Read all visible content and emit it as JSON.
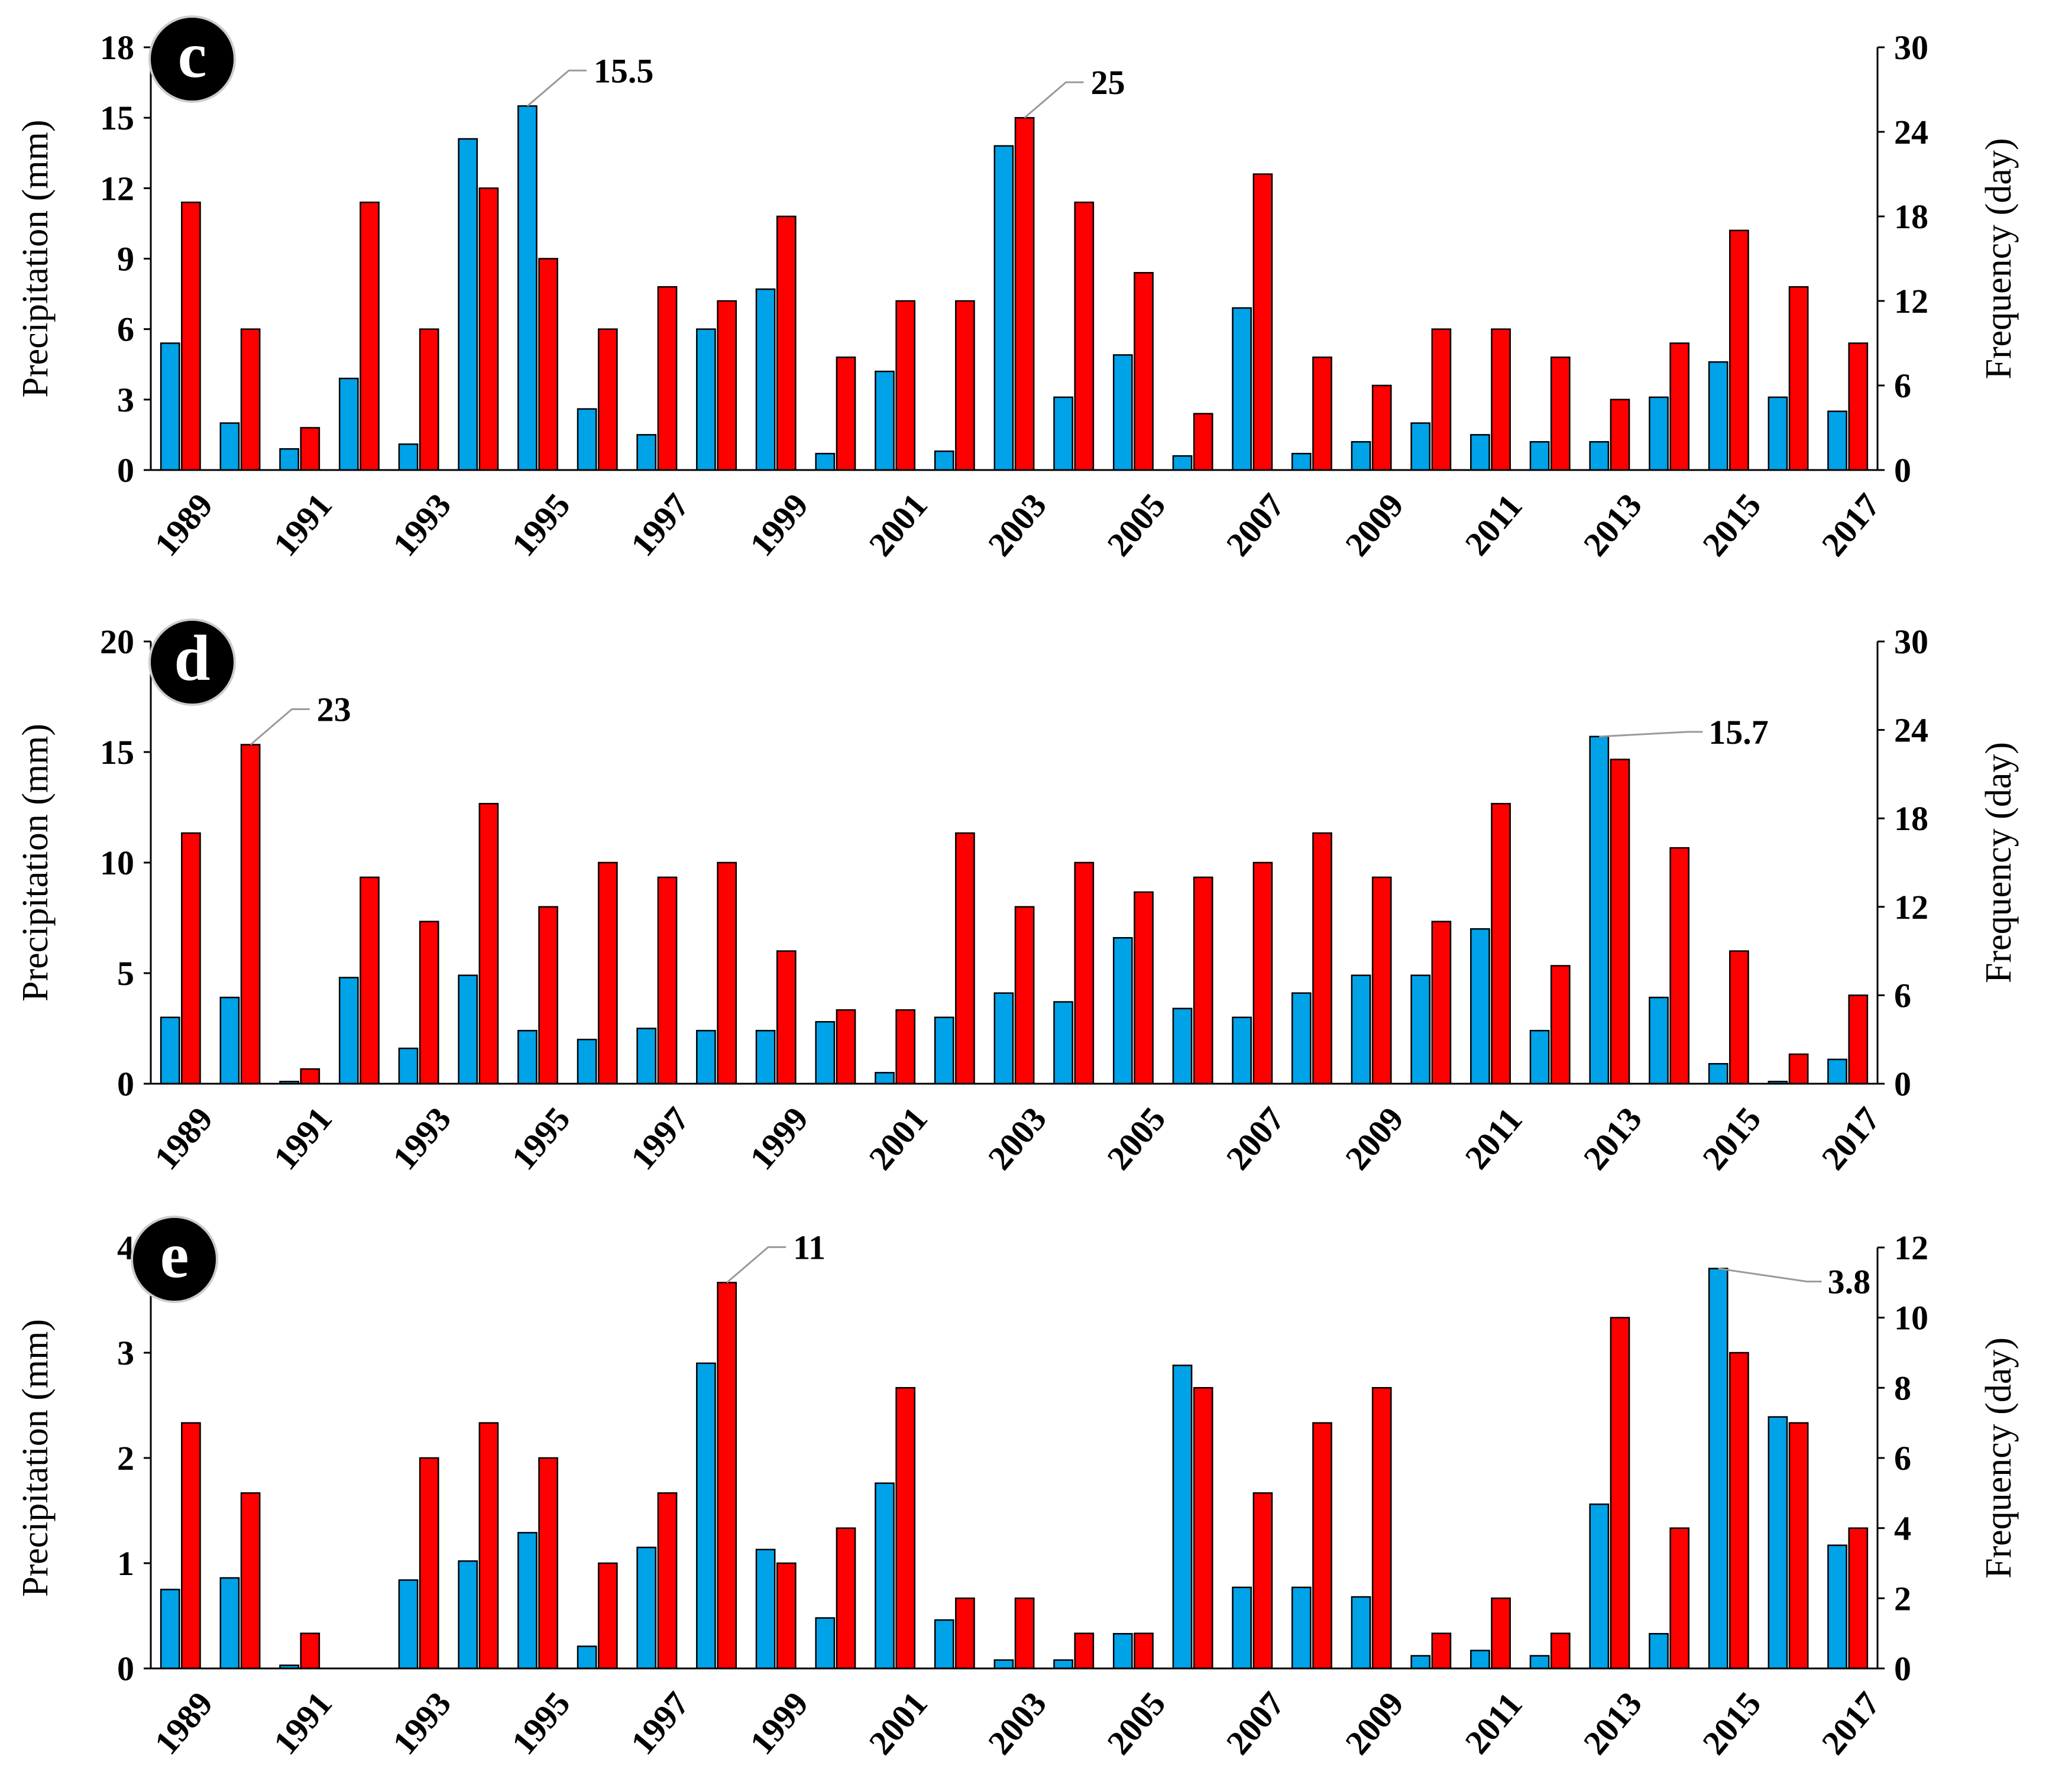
{
  "colors": {
    "precip_bar": "#00a2e8",
    "freq_bar": "#ff0000",
    "bar_outline": "#000000",
    "axis": "#000000",
    "badge": "#000000",
    "badge_text": "#ffffff",
    "leader": "#9a9a9a"
  },
  "chart_data": [
    {
      "panel_label": "c",
      "type": "bar",
      "categories": [
        "1989",
        "1990",
        "1991",
        "1992",
        "1993",
        "1994",
        "1995",
        "1996",
        "1997",
        "1998",
        "1999",
        "2000",
        "2001",
        "2002",
        "2003",
        "2004",
        "2005",
        "2006",
        "2007",
        "2008",
        "2009",
        "2010",
        "2011",
        "2012",
        "2013",
        "2014",
        "2015",
        "2016",
        "2017"
      ],
      "xtick_labels": [
        "1989",
        "1991",
        "1993",
        "1995",
        "1997",
        "1999",
        "2001",
        "2003",
        "2005",
        "2007",
        "2009",
        "2011",
        "2013",
        "2015",
        "2017"
      ],
      "ylabel": "Precipitation (mm)",
      "y2label": "Frequency (day)",
      "ylim": [
        0,
        18
      ],
      "yticks": [
        "0",
        "3",
        "6",
        "9",
        "12",
        "15",
        "18"
      ],
      "y2lim": [
        0,
        30
      ],
      "y2ticks": [
        "0",
        "6",
        "12",
        "18",
        "24",
        "30"
      ],
      "grid": false,
      "series": [
        {
          "axis": "left",
          "values": [
            5.4,
            2.0,
            0.9,
            3.9,
            1.1,
            14.1,
            15.5,
            2.6,
            1.5,
            6.0,
            7.7,
            0.7,
            4.2,
            0.8,
            13.8,
            3.1,
            4.9,
            0.6,
            6.9,
            0.7,
            1.2,
            2.0,
            1.5,
            1.2,
            1.2,
            3.1,
            4.6,
            3.1,
            2.5
          ]
        },
        {
          "axis": "right",
          "values": [
            19,
            10,
            3,
            19,
            10,
            20,
            15,
            10,
            13,
            12,
            18,
            8,
            12,
            12,
            25,
            19,
            14,
            4,
            21,
            8,
            6,
            10,
            10,
            8,
            5,
            9,
            17,
            13,
            9
          ]
        }
      ],
      "annotations": [
        {
          "text": "15.5",
          "series": 0,
          "index": 6
        },
        {
          "text": "25",
          "series": 1,
          "index": 14
        }
      ]
    },
    {
      "panel_label": "d",
      "type": "bar",
      "categories": [
        "1989",
        "1990",
        "1991",
        "1992",
        "1993",
        "1994",
        "1995",
        "1996",
        "1997",
        "1998",
        "1999",
        "2000",
        "2001",
        "2002",
        "2003",
        "2004",
        "2005",
        "2006",
        "2007",
        "2008",
        "2009",
        "2010",
        "2011",
        "2012",
        "2013",
        "2014",
        "2015",
        "2016",
        "2017"
      ],
      "xtick_labels": [
        "1989",
        "1991",
        "1993",
        "1995",
        "1997",
        "1999",
        "2001",
        "2003",
        "2005",
        "2007",
        "2009",
        "2011",
        "2013",
        "2015",
        "2017"
      ],
      "ylabel": "Precipitation (mm)",
      "y2label": "Frequency (day)",
      "ylim": [
        0,
        20
      ],
      "yticks": [
        "0",
        "5",
        "10",
        "15",
        "20"
      ],
      "y2lim": [
        0,
        30
      ],
      "y2ticks": [
        "0",
        "6",
        "12",
        "18",
        "24",
        "30"
      ],
      "grid": false,
      "series": [
        {
          "axis": "left",
          "values": [
            3.0,
            3.9,
            0.1,
            4.8,
            1.6,
            4.9,
            2.4,
            2.0,
            2.5,
            2.4,
            2.4,
            2.8,
            0.5,
            3.0,
            4.1,
            3.7,
            6.6,
            3.4,
            3.0,
            4.1,
            4.9,
            4.9,
            7.0,
            2.4,
            15.7,
            3.9,
            0.9,
            0.1,
            1.1
          ]
        },
        {
          "axis": "right",
          "values": [
            17,
            23,
            1,
            14,
            11,
            19,
            12,
            15,
            14,
            15,
            9,
            5,
            5,
            17,
            12,
            15,
            13,
            14,
            15,
            17,
            14,
            11,
            19,
            8,
            22,
            16,
            9,
            2,
            6
          ]
        }
      ],
      "annotations": [
        {
          "text": "23",
          "series": 1,
          "index": 1
        },
        {
          "text": "15.7",
          "series": 0,
          "index": 24
        }
      ]
    },
    {
      "panel_label": "e",
      "type": "bar",
      "categories": [
        "1989",
        "1990",
        "1991",
        "1992",
        "1993",
        "1994",
        "1995",
        "1996",
        "1997",
        "1998",
        "1999",
        "2000",
        "2001",
        "2002",
        "2003",
        "2004",
        "2005",
        "2006",
        "2007",
        "2008",
        "2009",
        "2010",
        "2011",
        "2012",
        "2013",
        "2014",
        "2015",
        "2016",
        "2017"
      ],
      "xtick_labels": [
        "1989",
        "1991",
        "1993",
        "1995",
        "1997",
        "1999",
        "2001",
        "2003",
        "2005",
        "2007",
        "2009",
        "2011",
        "2013",
        "2015",
        "2017"
      ],
      "ylabel": "Precipitation (mm)",
      "y2label": "Frequency (day)",
      "ylim": [
        0,
        4
      ],
      "yticks": [
        "0",
        "1",
        "2",
        "3",
        "4"
      ],
      "y2lim": [
        0,
        12
      ],
      "y2ticks": [
        "0",
        "2",
        "4",
        "6",
        "8",
        "10",
        "12"
      ],
      "grid": false,
      "series": [
        {
          "axis": "left",
          "values": [
            0.75,
            0.86,
            0.03,
            0,
            0.84,
            1.02,
            1.29,
            0.21,
            1.15,
            2.9,
            1.13,
            0.48,
            1.76,
            0.46,
            0.08,
            0.08,
            0.33,
            2.88,
            0.77,
            0.77,
            0.68,
            0.12,
            0.17,
            0.12,
            1.56,
            0.33,
            3.8,
            2.39,
            1.17
          ]
        },
        {
          "axis": "right",
          "values": [
            7,
            5,
            1,
            0,
            6,
            7,
            6,
            3,
            5,
            11,
            3,
            4,
            8,
            2,
            2,
            1,
            1,
            8,
            5,
            7,
            8,
            1,
            2,
            1,
            10,
            4,
            9,
            7,
            4
          ]
        }
      ],
      "annotations": [
        {
          "text": "11",
          "series": 1,
          "index": 9
        },
        {
          "text": "3.8",
          "series": 0,
          "index": 26
        }
      ]
    }
  ]
}
